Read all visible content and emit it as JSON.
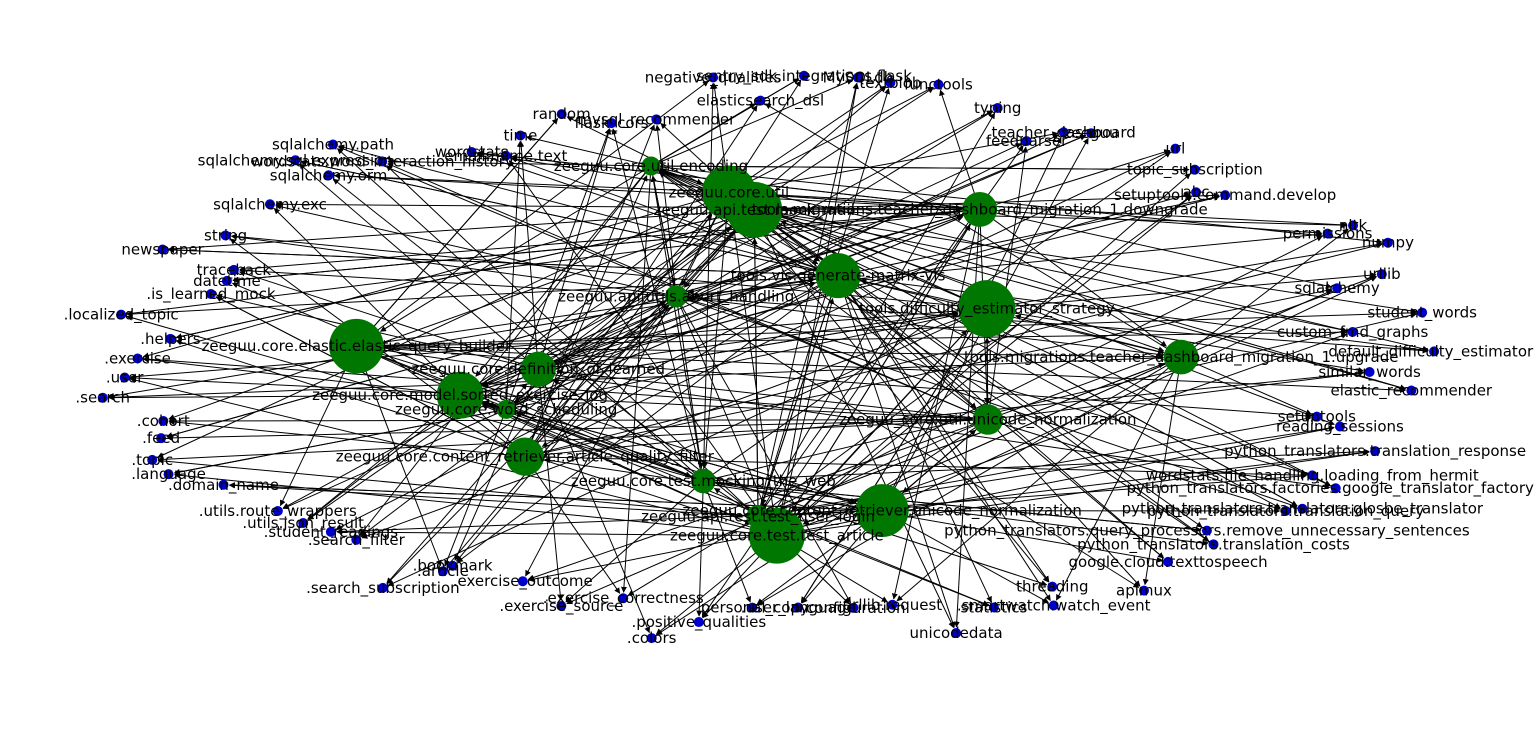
{
  "graph": {
    "style": {
      "module_color": "#007700",
      "external_color": "#0000cc",
      "edge_color": "#000000",
      "background": "#ffffff"
    },
    "nodes": [
      {
        "label": "setuptools",
        "kind": "external"
      },
      {
        "label": "reading_sessions",
        "kind": "external"
      },
      {
        "label": "python_translators.translation_response",
        "kind": "external"
      },
      {
        "label": "zeeguu_core.util.unicode_normalization",
        "kind": "module"
      },
      {
        "label": "zeeguu.core.content_retriever.unicode_normalization",
        "kind": "module"
      },
      {
        "label": "zeeguu.api.test.test_user_login",
        "kind": "module"
      },
      {
        "label": "zeeguu.core.test.test_article",
        "kind": "module"
      },
      {
        "label": "zeeguu.core.test.mocking_the_web",
        "kind": "module"
      },
      {
        "label": "zeeguu.core.content_retriever.article_quality_filter",
        "kind": "module"
      },
      {
        "label": "zeeguu.core.word_scheduling",
        "kind": "module"
      },
      {
        "label": "zeeguu.core.model.sorted_exercise_log",
        "kind": "module"
      },
      {
        "label": "zeeguu.core.definition_of_learned",
        "kind": "module"
      },
      {
        "label": "zeeguu.core.elastic.elastic_query_builder",
        "kind": "module"
      },
      {
        "label": "zeeguu.core.util.encoding",
        "kind": "module"
      },
      {
        "label": "zeeguu.core.util",
        "kind": "module"
      },
      {
        "label": "zeeguu.api.utils.abort_handling",
        "kind": "module"
      },
      {
        "label": "zeeguu.api.test.mock_mail",
        "kind": "module"
      },
      {
        "label": "tools.vis.generate-matrix-vis",
        "kind": "module"
      },
      {
        "label": "tools.migrations.teacher_dashboard_migration_1.downgrade",
        "kind": "module"
      },
      {
        "label": "tools.migrations.teacher_dashboard_migration_1.upgrade",
        "kind": "module"
      },
      {
        "label": "tools.difficulty_estimator_strategy",
        "kind": "module"
      },
      {
        "label": "wordstats.file_handling.loading_from_hermit",
        "kind": "external"
      },
      {
        "label": "python_translators.factories.google_translator_factory",
        "kind": "external"
      },
      {
        "label": "python_translators.translators.glosbe_translator",
        "kind": "external"
      },
      {
        "label": "python_translators.translation_query",
        "kind": "external"
      },
      {
        "label": "python_translators.translation_costs",
        "kind": "external"
      },
      {
        "label": "python_translators.query_processors.remove_unnecessary_sentences",
        "kind": "external"
      },
      {
        "label": "google.cloud.texttospeech",
        "kind": "external"
      },
      {
        "label": "apimux",
        "kind": "external"
      },
      {
        "label": "threading",
        "kind": "external"
      },
      {
        "label": ".smartwatch.watch_event",
        "kind": "external"
      },
      {
        "label": "statistics",
        "kind": "external"
      },
      {
        "label": "unicodedata",
        "kind": "external"
      },
      {
        "label": "urllib.request",
        "kind": "external"
      },
      {
        "label": ".configuration",
        "kind": "external"
      },
      {
        "label": ".user_language",
        "kind": "external"
      },
      {
        "label": ".personal_copy",
        "kind": "external"
      },
      {
        "label": ".positive_qualities",
        "kind": "external"
      },
      {
        "label": ".colors",
        "kind": "external"
      },
      {
        "label": ".exercise_correctness",
        "kind": "external"
      },
      {
        "label": ".exercise_source",
        "kind": "external"
      },
      {
        "label": ".exercise_outcome",
        "kind": "external"
      },
      {
        "label": ".bookmark",
        "kind": "external"
      },
      {
        "label": ".article",
        "kind": "external"
      },
      {
        "label": ".search_subscription",
        "kind": "external"
      },
      {
        "label": ".search_filter",
        "kind": "external"
      },
      {
        "label": ".student_readings",
        "kind": "external"
      },
      {
        "label": ".utils.json_result",
        "kind": "external"
      },
      {
        "label": ".utils.route_wrappers",
        "kind": "external"
      },
      {
        "label": ".domain_name",
        "kind": "external"
      },
      {
        "label": ".language",
        "kind": "external"
      },
      {
        "label": ".topic",
        "kind": "external"
      },
      {
        "label": ".feed",
        "kind": "external"
      },
      {
        "label": ".cohort",
        "kind": "external"
      },
      {
        "label": ".search",
        "kind": "external"
      },
      {
        "label": ".user",
        "kind": "external"
      },
      {
        "label": ".exercise",
        "kind": "external"
      },
      {
        "label": ".helpers",
        "kind": "external"
      },
      {
        "label": ".localized_topic",
        "kind": "external"
      },
      {
        "label": ".is_learned_mock",
        "kind": "external"
      },
      {
        "label": "datetime",
        "kind": "external"
      },
      {
        "label": "traceback",
        "kind": "external"
      },
      {
        "label": "newspaper",
        "kind": "external"
      },
      {
        "label": "string",
        "kind": "external"
      },
      {
        "label": "sqlalchemy.exc",
        "kind": "external"
      },
      {
        "label": "sqlalchemy.orm",
        "kind": "external"
      },
      {
        "label": "sqlalchemy.sql.expression",
        "kind": "external"
      },
      {
        "label": "sqlalchemy.path",
        "kind": "external"
      },
      {
        "label": "wordstats.word_interaction_history",
        "kind": "external"
      },
      {
        "label": "wordstats",
        "kind": "external"
      },
      {
        "label": "email.mime.text",
        "kind": "external"
      },
      {
        "label": "time",
        "kind": "external"
      },
      {
        "label": "random",
        "kind": "external"
      },
      {
        "label": "flask_cors",
        "kind": "external"
      },
      {
        "label": "mysql_recommender",
        "kind": "external"
      },
      {
        "label": "negative_qualities",
        "kind": "external"
      },
      {
        "label": "elasticsearch_dsl",
        "kind": "external"
      },
      {
        "label": "sentry_sdk.integrations.flask",
        "kind": "external"
      },
      {
        "label": "MySQLdb",
        "kind": "external"
      },
      {
        "label": "textblob",
        "kind": "external"
      },
      {
        "label": "functools",
        "kind": "external"
      },
      {
        "label": "typing",
        "kind": "external"
      },
      {
        "label": "feedparser",
        "kind": "external"
      },
      {
        "label": "teacher_dashboard",
        "kind": "external"
      },
      {
        "label": "zeeguu",
        "kind": "external"
      },
      {
        "label": "url",
        "kind": "external"
      },
      {
        "label": "abc",
        "kind": "external"
      },
      {
        "label": "topic_subscription",
        "kind": "external"
      },
      {
        "label": "setuptools.command.develop",
        "kind": "external"
      },
      {
        "label": "permissions",
        "kind": "external"
      },
      {
        "label": "nltk",
        "kind": "external"
      },
      {
        "label": "numpy",
        "kind": "external"
      },
      {
        "label": "urllib",
        "kind": "external"
      },
      {
        "label": "sqlalchemy",
        "kind": "external"
      },
      {
        "label": "student_words",
        "kind": "external"
      },
      {
        "label": "custom_fmd_graphs",
        "kind": "external"
      },
      {
        "label": "default_difficulty_estimator",
        "kind": "external"
      },
      {
        "label": "similar_words",
        "kind": "external"
      },
      {
        "label": "elastic_recommender",
        "kind": "external"
      }
    ]
  }
}
